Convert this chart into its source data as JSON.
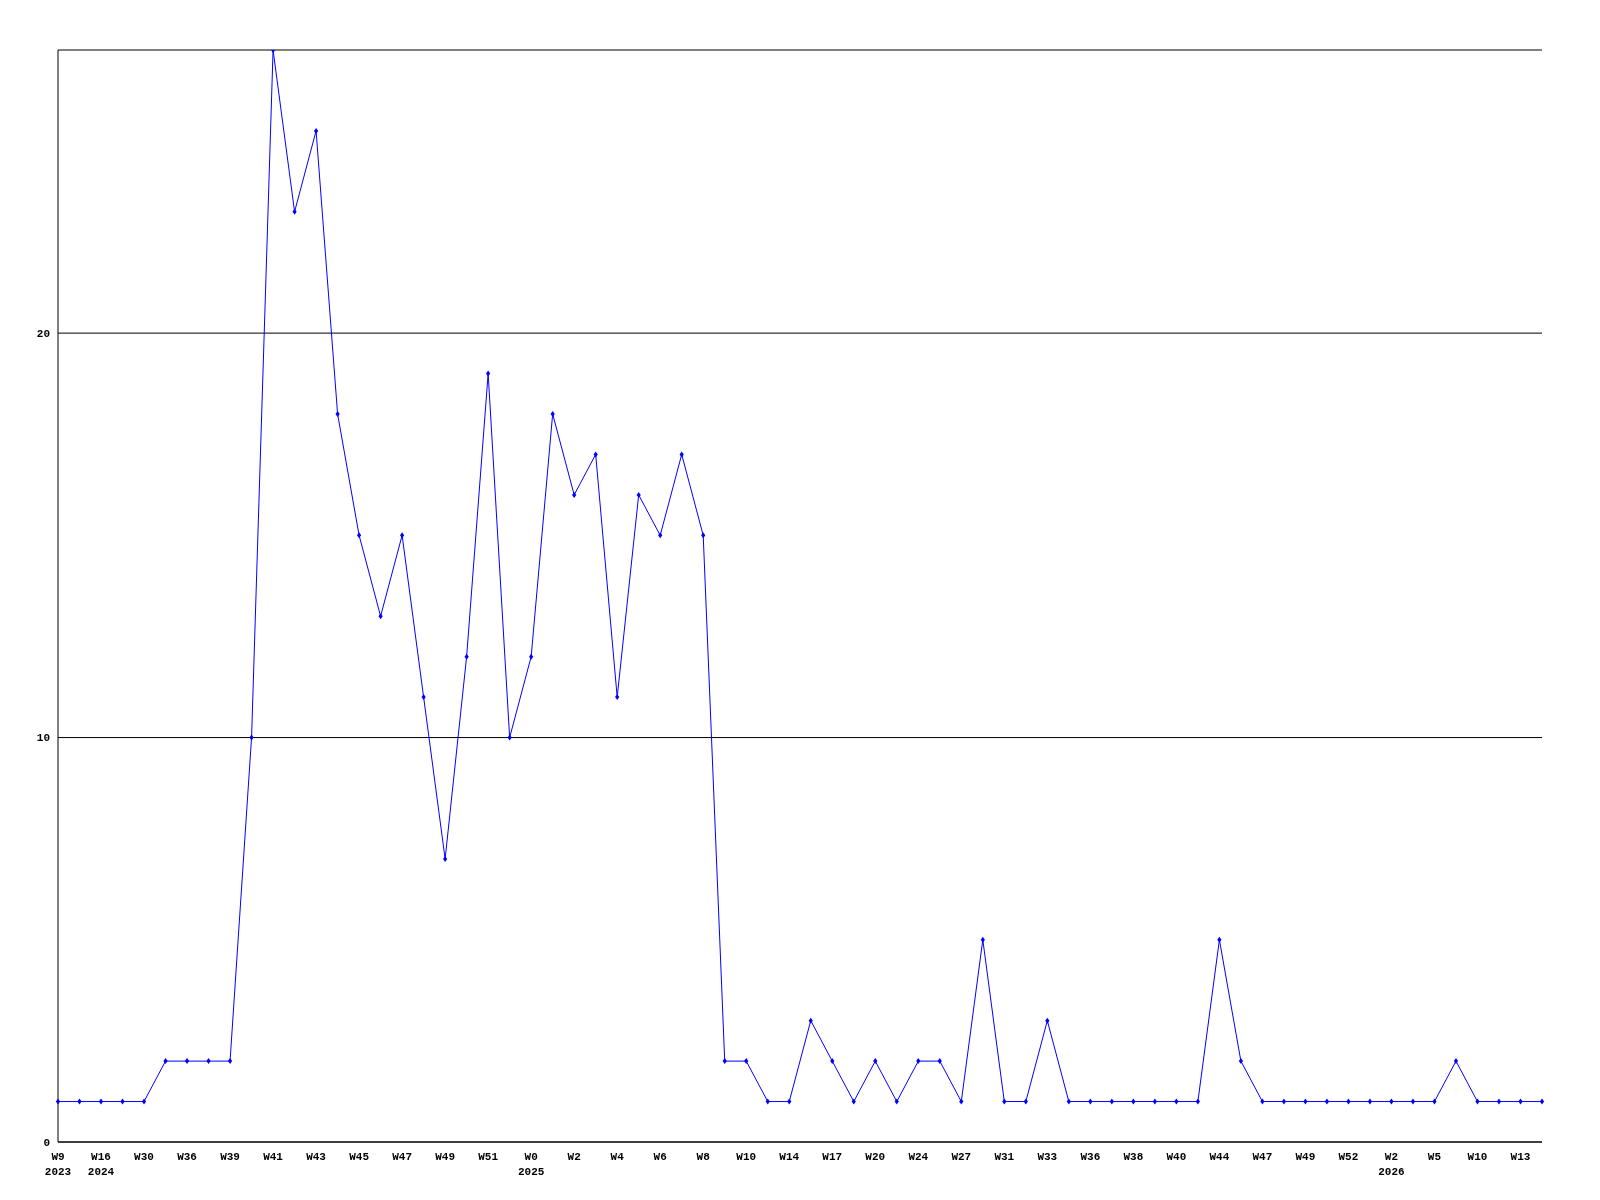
{
  "chart_data": {
    "type": "line",
    "categories": [
      "W9\n2023",
      null,
      "W16\n2024",
      null,
      "W30",
      null,
      "W36",
      null,
      "W39",
      null,
      "W41",
      null,
      "W43",
      null,
      "W45",
      null,
      "W47",
      null,
      "W49",
      null,
      "W51",
      null,
      "W0\n2025",
      null,
      "W2",
      null,
      "W4",
      null,
      "W6",
      null,
      "W8",
      null,
      "W10",
      null,
      "W14",
      null,
      "W17",
      null,
      "W20",
      null,
      "W24",
      null,
      "W27",
      null,
      "W31",
      null,
      "W33",
      null,
      "W36",
      null,
      "W38",
      null,
      "W40",
      null,
      "W44",
      null,
      "W47",
      null,
      "W49",
      null,
      "W52",
      null,
      "W2\n2026",
      null,
      "W5",
      null,
      "W10",
      null,
      "W13",
      null
    ],
    "series": [
      {
        "color": "#0000ff",
        "values": [
          1,
          1,
          1,
          1,
          1,
          2,
          2,
          2,
          2,
          10,
          27,
          23,
          25,
          18,
          15,
          13,
          15,
          11,
          7,
          12,
          19,
          10,
          12,
          18,
          16,
          17,
          11,
          16,
          15,
          17,
          15,
          2,
          2,
          1,
          1,
          3,
          2,
          1,
          2,
          1,
          2,
          2,
          1,
          5,
          1,
          1,
          3,
          1,
          1,
          1,
          1,
          1,
          1,
          1,
          5,
          2,
          1,
          1,
          1,
          1,
          1,
          1,
          1,
          1,
          1,
          2,
          1,
          1,
          1,
          1
        ]
      }
    ],
    "ylim": [
      0,
      27
    ],
    "yticks": [
      0,
      10,
      20
    ],
    "grid": "y",
    "marker": "diamond",
    "line_style": "solid"
  }
}
